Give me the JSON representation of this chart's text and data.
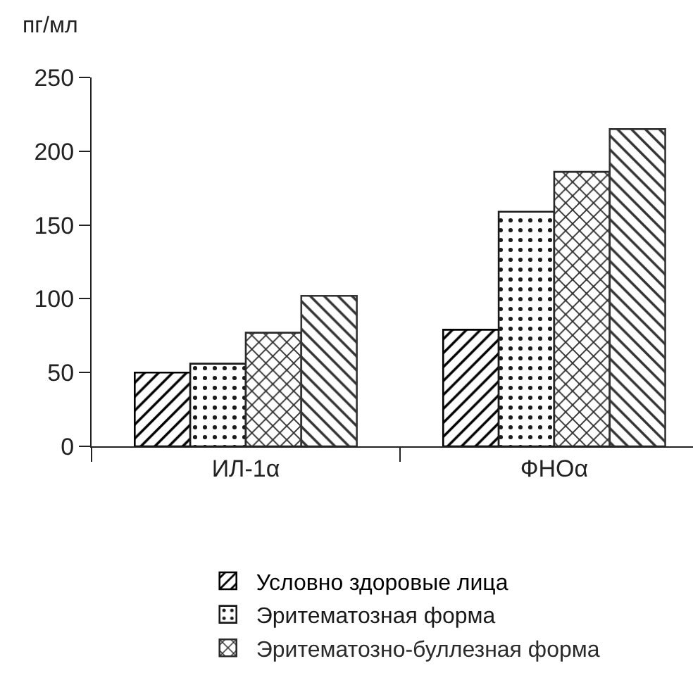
{
  "chart_data": {
    "type": "bar",
    "ylabel": "пг/мл",
    "categories": [
      "ИЛ-1α",
      "ФНОα"
    ],
    "series": [
      {
        "name": "Условно здоровые лица",
        "color": "#000000",
        "values": [
          50,
          79
        ]
      },
      {
        "name": "Эритематозная форма",
        "color": "#1a1a1a",
        "values": [
          56,
          159
        ]
      },
      {
        "name": "Эритематозно-буллезная форма",
        "color": "#2a2a2a",
        "values": [
          77,
          186
        ]
      },
      {
        "color": "#333333",
        "values": [
          102,
          215
        ]
      }
    ],
    "ylim": [
      0,
      250
    ],
    "yticks": [
      0,
      50,
      100,
      150,
      200,
      250
    ],
    "grid": false,
    "legend": "bottom"
  }
}
